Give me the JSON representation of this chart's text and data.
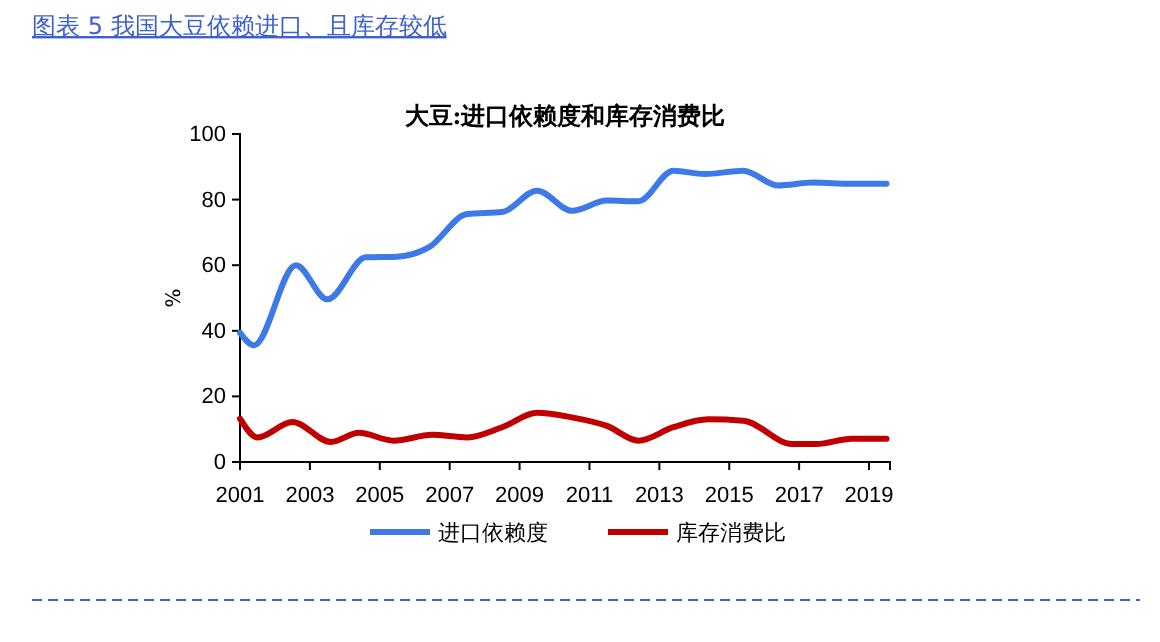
{
  "chart_data": {
    "type": "line",
    "title": "图表 5 我国大豆依赖进口、且库存较低",
    "subtitle": "大豆:进口依赖度和库存消费比",
    "ylabel": "%",
    "xlim": [
      2001,
      2019.6
    ],
    "xticks": [
      2001,
      2003,
      2005,
      2007,
      2009,
      2011,
      2013,
      2015,
      2017,
      2019
    ],
    "ylim": [
      0,
      100
    ],
    "yticks": [
      0,
      20,
      40,
      60,
      80,
      100
    ],
    "grid": false,
    "legend": "bottom",
    "line_style": "solid",
    "marker": "none",
    "series": [
      {
        "name": "进口依赖度",
        "color": "#3d7ae8",
        "x": [
          2001,
          2001.4,
          2002.6,
          2003.5,
          2004.6,
          2005.5,
          2006.4,
          2007.5,
          2008.5,
          2009.5,
          2010.5,
          2011.5,
          2012.4,
          2013.4,
          2014.3,
          2015.4,
          2016.4,
          2017.4,
          2018.5,
          2019.5
        ],
        "values": [
          39.4,
          35.6,
          60,
          49.6,
          62.4,
          62.6,
          65.4,
          75.6,
          76.2,
          82.7,
          76.6,
          79.7,
          79.5,
          88.8,
          87.8,
          88.8,
          84.3,
          85.2,
          84.8,
          84.8
        ]
      },
      {
        "name": "库存消费比",
        "color": "#c00000",
        "x": [
          2001,
          2001.5,
          2002.5,
          2003.6,
          2004.4,
          2005.4,
          2006.5,
          2007.5,
          2008.5,
          2009.5,
          2010.5,
          2011.5,
          2012.4,
          2013.4,
          2014.4,
          2015.4,
          2016.8,
          2017.5,
          2018.5,
          2019.5
        ],
        "values": [
          13.2,
          7.5,
          12.2,
          6.1,
          8.9,
          6.5,
          8.3,
          7.5,
          10.6,
          15,
          13.6,
          11,
          6.5,
          10.6,
          13,
          12.6,
          5.5,
          5.5,
          7.1,
          7.1
        ]
      }
    ]
  }
}
